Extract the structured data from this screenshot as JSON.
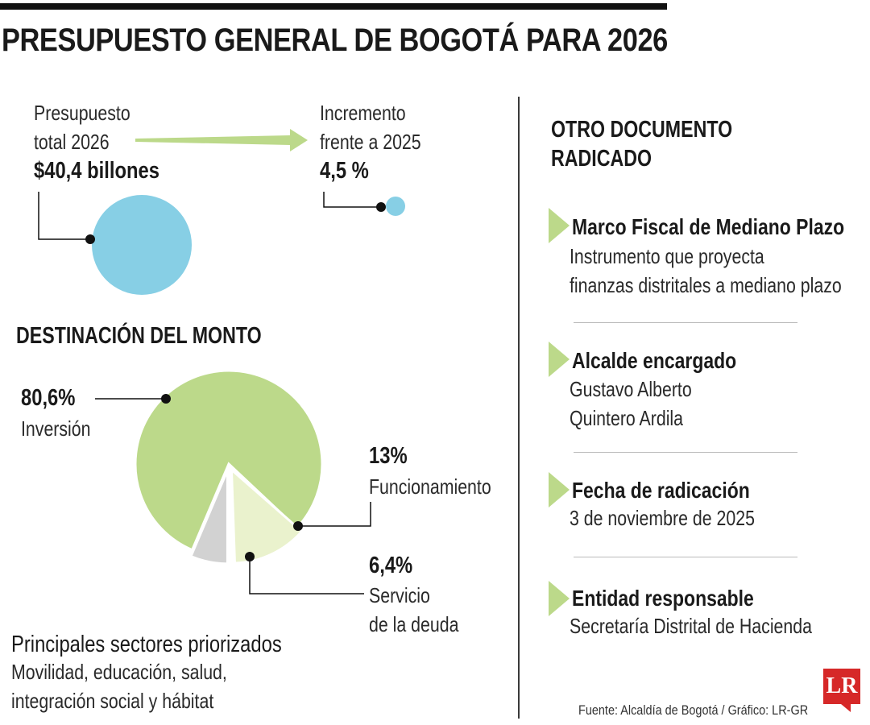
{
  "title": "PRESUPUESTO GENERAL DE BOGOTÁ PARA 2026",
  "budget": {
    "label_line1": "Presupuesto",
    "label_line2": "total 2026",
    "value": "$40,4 billones"
  },
  "increment": {
    "label_line1": "Incremento",
    "label_line2": "frente a 2025",
    "value": "4,5 %"
  },
  "destination_heading": "DESTINACIÓN DEL MONTO",
  "slices": {
    "inversion": {
      "value_label": "80,6%",
      "name": "Inversión"
    },
    "funcionamiento": {
      "value_label": "13%",
      "name": "Funcionamiento"
    },
    "deuda": {
      "value_label": "6,4%",
      "name_line1": "Servicio",
      "name_line2": "de la deuda"
    }
  },
  "sectors": {
    "heading": "Principales sectores priorizados",
    "line1": "Movilidad, educación, salud,",
    "line2": "integración social y hábitat"
  },
  "other_doc": {
    "heading_line1": "OTRO DOCUMENTO",
    "heading_line2": "RADICADO",
    "items": [
      {
        "title": "Marco Fiscal de Mediano Plazo",
        "line1": "Instrumento que proyecta",
        "line2": "finanzas distritales a mediano plazo"
      },
      {
        "title": "Alcalde encargado",
        "line1": "Gustavo Alberto",
        "line2": "Quintero Ardila"
      },
      {
        "title": "Fecha de radicación",
        "line1": "3 de noviembre de 2025",
        "line2": ""
      },
      {
        "title": "Entidad responsable",
        "line1": "Secretaría Distrital de Hacienda",
        "line2": ""
      }
    ]
  },
  "source": "Fuente: Alcaldía de Bogotá / Gráfico: LR-GR",
  "logo": "LR",
  "colors": {
    "circle_blue": "#87cfe5",
    "pie_green": "#bcd98a",
    "pie_light": "#eaf2cd",
    "pie_grey": "#d2d2d2",
    "arrow_green": "#bcd98a"
  },
  "chart_data": {
    "type": "pie",
    "categories": [
      "Inversión",
      "Funcionamiento",
      "Servicio de la deuda"
    ],
    "values": [
      80.6,
      13,
      6.4
    ],
    "unit": "%"
  }
}
